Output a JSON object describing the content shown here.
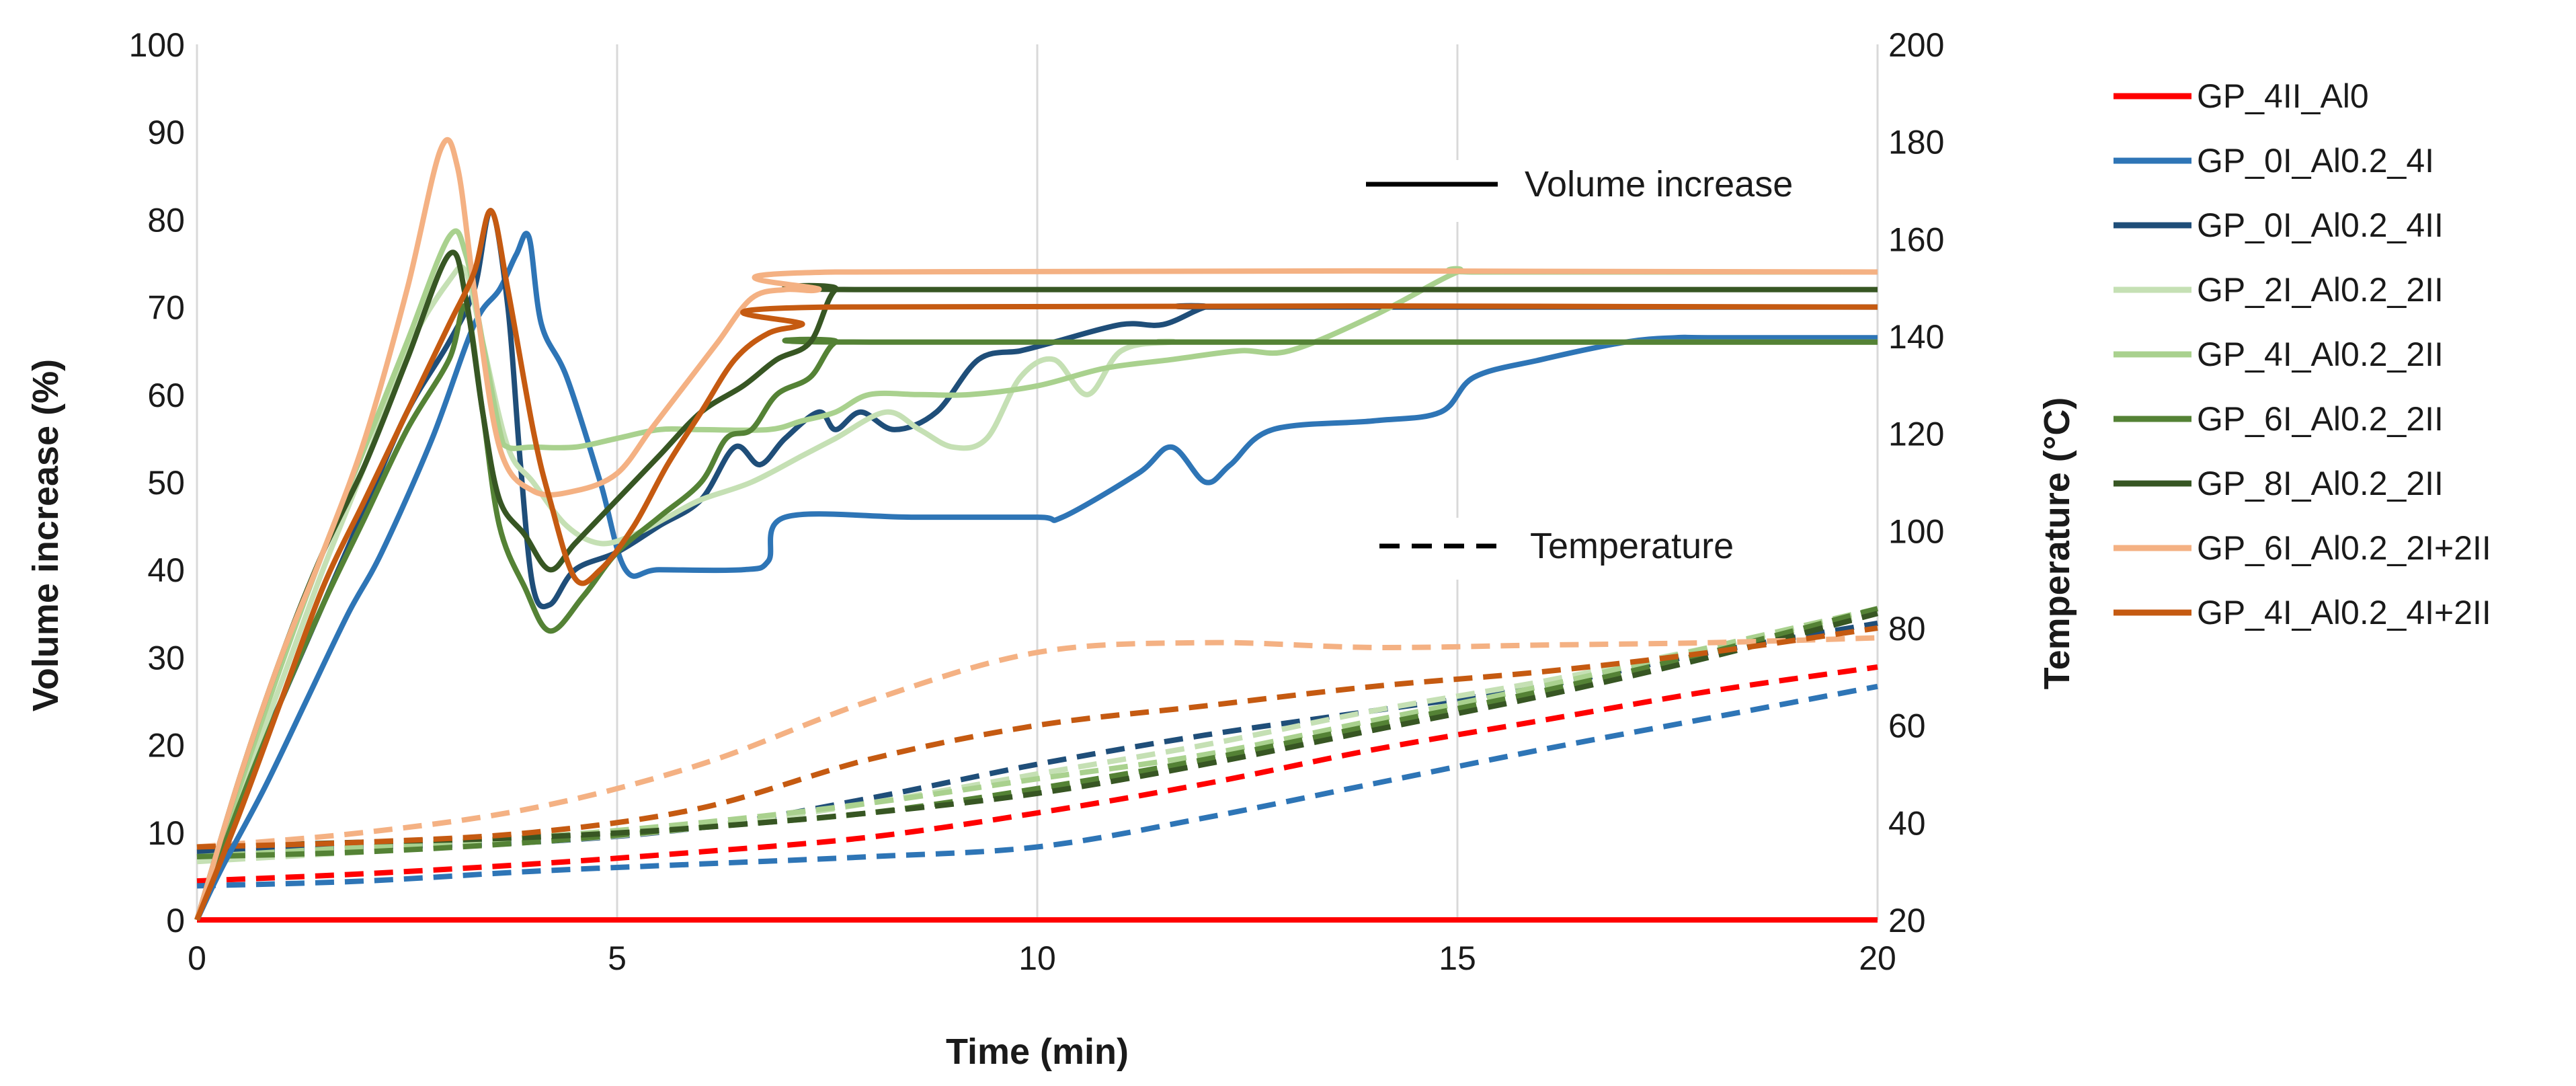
{
  "chart_data": {
    "type": "line",
    "xlabel": "Time (min)",
    "ylabel": "Volume increase (%)",
    "y2label": "Temperature (°C)",
    "xlim": [
      0,
      20
    ],
    "ylim": [
      0,
      100
    ],
    "y2lim": [
      20,
      200
    ],
    "xticks": [
      0,
      5,
      10,
      15,
      20
    ],
    "yticks": [
      0,
      10,
      20,
      30,
      40,
      50,
      60,
      70,
      80,
      90,
      100
    ],
    "y2ticks": [
      20,
      40,
      60,
      80,
      100,
      120,
      140,
      160,
      180,
      200
    ],
    "grid": "vertical",
    "legend_position": "right",
    "annotations": {
      "solid_label": "Volume increase",
      "dashed_label": "Temperature"
    },
    "series": [
      {
        "name": "GP_4II_Al0",
        "color": "#ff0000",
        "volume": [
          [
            0,
            0
          ],
          [
            20,
            0
          ]
        ],
        "temperature": [
          [
            0,
            28
          ],
          [
            2,
            29.5
          ],
          [
            4,
            31.5
          ],
          [
            6,
            34
          ],
          [
            8,
            37
          ],
          [
            10,
            42
          ],
          [
            12,
            48
          ],
          [
            14,
            55
          ],
          [
            16,
            61
          ],
          [
            18,
            67
          ],
          [
            20,
            72
          ]
        ]
      },
      {
        "name": "GP_0I_Al0.2_4I",
        "color": "#2e75b6",
        "volume": [
          [
            0,
            0
          ],
          [
            0.3,
            6
          ],
          [
            0.8,
            15
          ],
          [
            1.3,
            25
          ],
          [
            1.8,
            35
          ],
          [
            2.2,
            42
          ],
          [
            2.8,
            55
          ],
          [
            3.3,
            68
          ],
          [
            3.6,
            72
          ],
          [
            3.8,
            76
          ],
          [
            3.95,
            78
          ],
          [
            4.1,
            68
          ],
          [
            4.4,
            62
          ],
          [
            4.8,
            50
          ],
          [
            5.1,
            40
          ],
          [
            5.5,
            40
          ],
          [
            6.5,
            40
          ],
          [
            6.8,
            41
          ],
          [
            7,
            46
          ],
          [
            8.5,
            46
          ],
          [
            10,
            46
          ],
          [
            10.3,
            46
          ],
          [
            11.2,
            51
          ],
          [
            11.6,
            54
          ],
          [
            12,
            50
          ],
          [
            12.3,
            52
          ],
          [
            12.8,
            56
          ],
          [
            14,
            57
          ],
          [
            14.8,
            58
          ],
          [
            15.2,
            62
          ],
          [
            16,
            64
          ],
          [
            17,
            66
          ],
          [
            17.6,
            66.5
          ],
          [
            18,
            66.5
          ],
          [
            20,
            66.5
          ]
        ],
        "temperature": [
          [
            0,
            27
          ],
          [
            2,
            28
          ],
          [
            4,
            30
          ],
          [
            6,
            31.5
          ],
          [
            8,
            33
          ],
          [
            10,
            35
          ],
          [
            12,
            41
          ],
          [
            14,
            48
          ],
          [
            16,
            55
          ],
          [
            18,
            61.5
          ],
          [
            20,
            68
          ]
        ]
      },
      {
        "name": "GP_0I_Al0.2_4II",
        "color": "#1f4e79",
        "volume": [
          [
            0,
            0
          ],
          [
            0.5,
            14
          ],
          [
            1,
            25
          ],
          [
            1.5,
            36
          ],
          [
            2,
            47
          ],
          [
            2.5,
            58
          ],
          [
            3,
            66
          ],
          [
            3.3,
            72
          ],
          [
            3.5,
            81
          ],
          [
            3.7,
            70
          ],
          [
            3.85,
            52
          ],
          [
            4,
            38
          ],
          [
            4.2,
            36
          ],
          [
            4.5,
            40
          ],
          [
            5,
            42
          ],
          [
            5.5,
            45
          ],
          [
            6,
            48
          ],
          [
            6.4,
            54
          ],
          [
            6.7,
            52
          ],
          [
            7,
            55
          ],
          [
            7.4,
            58
          ],
          [
            7.6,
            56
          ],
          [
            7.9,
            58
          ],
          [
            8.3,
            56
          ],
          [
            8.8,
            58
          ],
          [
            9.3,
            64
          ],
          [
            9.8,
            65
          ],
          [
            10.2,
            66
          ],
          [
            11,
            68
          ],
          [
            11.5,
            68
          ],
          [
            12,
            70
          ],
          [
            12.3,
            70
          ],
          [
            20,
            70
          ]
        ],
        "temperature": [
          [
            0,
            34
          ],
          [
            2,
            35
          ],
          [
            4,
            36
          ],
          [
            6,
            39
          ],
          [
            8,
            45
          ],
          [
            10,
            52
          ],
          [
            12,
            58
          ],
          [
            14,
            63
          ],
          [
            16,
            68
          ],
          [
            18,
            75
          ],
          [
            20,
            81
          ]
        ]
      },
      {
        "name": "GP_2I_Al0.2_2II",
        "color": "#c5e0b4",
        "volume": [
          [
            0,
            0
          ],
          [
            0.5,
            14
          ],
          [
            1,
            27
          ],
          [
            1.5,
            40
          ],
          [
            2,
            52
          ],
          [
            2.5,
            65
          ],
          [
            3,
            73
          ],
          [
            3.2,
            74
          ],
          [
            3.4,
            66
          ],
          [
            3.7,
            54
          ],
          [
            4,
            50
          ],
          [
            4.4,
            45
          ],
          [
            4.8,
            43
          ],
          [
            5.2,
            44
          ],
          [
            5.6,
            46
          ],
          [
            6,
            48
          ],
          [
            6.6,
            50
          ],
          [
            7.2,
            53
          ],
          [
            7.6,
            55
          ],
          [
            8.2,
            58
          ],
          [
            8.6,
            56
          ],
          [
            9,
            54
          ],
          [
            9.4,
            55
          ],
          [
            9.8,
            62
          ],
          [
            10.2,
            64
          ],
          [
            10.6,
            60
          ],
          [
            11,
            65
          ],
          [
            11.6,
            66
          ],
          [
            12.2,
            66
          ],
          [
            20,
            66
          ]
        ],
        "temperature": [
          [
            0,
            32
          ],
          [
            2,
            34
          ],
          [
            4,
            36
          ],
          [
            6,
            39
          ],
          [
            8,
            44
          ],
          [
            10,
            50
          ],
          [
            12,
            56
          ],
          [
            14,
            63
          ],
          [
            16,
            69
          ],
          [
            18,
            76
          ],
          [
            20,
            83
          ]
        ]
      },
      {
        "name": "GP_4I_Al0.2_2II",
        "color": "#a9d18e",
        "volume": [
          [
            0,
            0
          ],
          [
            0.5,
            15
          ],
          [
            1,
            29
          ],
          [
            1.5,
            42
          ],
          [
            2,
            54
          ],
          [
            2.5,
            66
          ],
          [
            3,
            78
          ],
          [
            3.2,
            76
          ],
          [
            3.4,
            66
          ],
          [
            3.6,
            56
          ],
          [
            3.7,
            54
          ],
          [
            4,
            54
          ],
          [
            4.5,
            54
          ],
          [
            5,
            55
          ],
          [
            5.5,
            56
          ],
          [
            6,
            56
          ],
          [
            6.8,
            56
          ],
          [
            7.2,
            57
          ],
          [
            7.6,
            58
          ],
          [
            8,
            60
          ],
          [
            8.6,
            60
          ],
          [
            9.2,
            60
          ],
          [
            10,
            61
          ],
          [
            10.8,
            63
          ],
          [
            11.6,
            64
          ],
          [
            12.4,
            65
          ],
          [
            13,
            65
          ],
          [
            14,
            69
          ],
          [
            15,
            74
          ],
          [
            15.3,
            74
          ],
          [
            20,
            74
          ]
        ],
        "temperature": [
          [
            0,
            33
          ],
          [
            2,
            35
          ],
          [
            4,
            37
          ],
          [
            6,
            40
          ],
          [
            8,
            44
          ],
          [
            10,
            49
          ],
          [
            12,
            54
          ],
          [
            14,
            61
          ],
          [
            16,
            68
          ],
          [
            18,
            76
          ],
          [
            20,
            84
          ]
        ]
      },
      {
        "name": "GP_6I_Al0.2_2II",
        "color": "#548235",
        "volume": [
          [
            0,
            0
          ],
          [
            0.5,
            13
          ],
          [
            1,
            25
          ],
          [
            1.5,
            36
          ],
          [
            2,
            46
          ],
          [
            2.5,
            56
          ],
          [
            3,
            64
          ],
          [
            3.2,
            70
          ],
          [
            3.4,
            58
          ],
          [
            3.6,
            45
          ],
          [
            3.9,
            38
          ],
          [
            4.2,
            33
          ],
          [
            4.6,
            37
          ],
          [
            5,
            42
          ],
          [
            5.5,
            46
          ],
          [
            6,
            50
          ],
          [
            6.3,
            55
          ],
          [
            6.6,
            56
          ],
          [
            6.9,
            60
          ],
          [
            7.3,
            62
          ],
          [
            7.6,
            66
          ],
          [
            8,
            66
          ],
          [
            20,
            66
          ]
        ],
        "temperature": [
          [
            0,
            33
          ],
          [
            2,
            34
          ],
          [
            4,
            36
          ],
          [
            6,
            39
          ],
          [
            8,
            42
          ],
          [
            10,
            47
          ],
          [
            12,
            53
          ],
          [
            14,
            60
          ],
          [
            16,
            67
          ],
          [
            18,
            75
          ],
          [
            20,
            84
          ]
        ]
      },
      {
        "name": "GP_8I_Al0.2_2II",
        "color": "#375623",
        "volume": [
          [
            0,
            0
          ],
          [
            0.5,
            16
          ],
          [
            1,
            30
          ],
          [
            1.5,
            42
          ],
          [
            2,
            52
          ],
          [
            2.5,
            64
          ],
          [
            3,
            76
          ],
          [
            3.2,
            71
          ],
          [
            3.4,
            58
          ],
          [
            3.6,
            48
          ],
          [
            3.9,
            44
          ],
          [
            4.2,
            40
          ],
          [
            4.5,
            43
          ],
          [
            5,
            48
          ],
          [
            5.5,
            53
          ],
          [
            6,
            58
          ],
          [
            6.5,
            61
          ],
          [
            6.9,
            64
          ],
          [
            7.3,
            66
          ],
          [
            7.6,
            72
          ],
          [
            8,
            72
          ],
          [
            20,
            72
          ]
        ],
        "temperature": [
          [
            0,
            35
          ],
          [
            2,
            36
          ],
          [
            4,
            37
          ],
          [
            6,
            39
          ],
          [
            8,
            42
          ],
          [
            10,
            46
          ],
          [
            12,
            52
          ],
          [
            14,
            59
          ],
          [
            16,
            66
          ],
          [
            18,
            74
          ],
          [
            20,
            83
          ]
        ]
      },
      {
        "name": "GP_6I_Al0.2_2I+2II",
        "color": "#f4b183",
        "volume": [
          [
            0,
            0
          ],
          [
            0.5,
            16
          ],
          [
            1,
            30
          ],
          [
            1.5,
            42
          ],
          [
            2,
            55
          ],
          [
            2.5,
            72
          ],
          [
            2.9,
            88
          ],
          [
            3.1,
            86
          ],
          [
            3.3,
            72
          ],
          [
            3.6,
            54
          ],
          [
            4,
            49
          ],
          [
            4.5,
            49
          ],
          [
            5,
            51
          ],
          [
            5.4,
            56
          ],
          [
            5.8,
            61
          ],
          [
            6.2,
            66
          ],
          [
            6.6,
            71
          ],
          [
            7,
            72
          ],
          [
            7.4,
            72
          ],
          [
            7.6,
            74
          ],
          [
            20,
            74
          ]
        ],
        "temperature": [
          [
            0,
            35
          ],
          [
            2,
            38
          ],
          [
            4,
            43
          ],
          [
            6,
            52
          ],
          [
            8,
            65
          ],
          [
            10,
            75
          ],
          [
            12,
            77
          ],
          [
            14,
            76
          ],
          [
            16,
            76.5
          ],
          [
            18,
            77
          ],
          [
            20,
            78
          ]
        ]
      },
      {
        "name": "GP_4I_Al0.2_4I+2II",
        "color": "#c55a11",
        "volume": [
          [
            0,
            0
          ],
          [
            0.5,
            12
          ],
          [
            1,
            25
          ],
          [
            1.5,
            38
          ],
          [
            2,
            48
          ],
          [
            2.5,
            58
          ],
          [
            3,
            68
          ],
          [
            3.3,
            74
          ],
          [
            3.5,
            81
          ],
          [
            3.7,
            72
          ],
          [
            4,
            56
          ],
          [
            4.2,
            48
          ],
          [
            4.5,
            39
          ],
          [
            4.8,
            40
          ],
          [
            5.2,
            45
          ],
          [
            5.6,
            52
          ],
          [
            6,
            58
          ],
          [
            6.4,
            64
          ],
          [
            6.8,
            67
          ],
          [
            7.2,
            68
          ],
          [
            7.5,
            70
          ],
          [
            20,
            70
          ]
        ],
        "temperature": [
          [
            0,
            35
          ],
          [
            2,
            36
          ],
          [
            4,
            38
          ],
          [
            6,
            43
          ],
          [
            8,
            53
          ],
          [
            10,
            60
          ],
          [
            12,
            64
          ],
          [
            14,
            68
          ],
          [
            16,
            71
          ],
          [
            18,
            75
          ],
          [
            20,
            80
          ]
        ]
      }
    ]
  }
}
